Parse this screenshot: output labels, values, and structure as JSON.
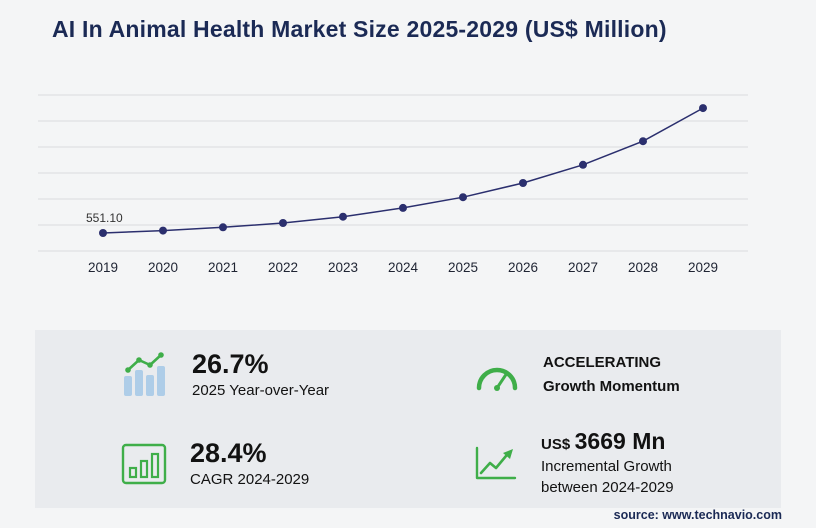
{
  "title": "AI In Animal Health Market Size 2025-2029 (US$ Million)",
  "source_text": "source: www.technavio.com",
  "chart_data": {
    "type": "line",
    "title": "AI In Animal Health Market Size 2025-2029 (US$ Million)",
    "categories": [
      "2019",
      "2020",
      "2021",
      "2022",
      "2023",
      "2024",
      "2025",
      "2026",
      "2027",
      "2028",
      "2029"
    ],
    "values": [
      551.1,
      640,
      760,
      920,
      1150,
      1473,
      1866,
      2390,
      3060,
      3925,
      5142
    ],
    "point_label": {
      "category": "2019",
      "text": "551.10"
    },
    "xlabel": "",
    "ylabel": "US$ Million",
    "ylim": [
      0,
      5500
    ],
    "grid": true,
    "legend": "none",
    "line_color": "#2b2f6e",
    "marker_color": "#2b2f6e"
  },
  "stats": {
    "yoy": {
      "value": "26.7%",
      "label": "2025 Year-over-Year"
    },
    "momentum": {
      "line1": "ACCELERATING",
      "line2": "Growth Momentum"
    },
    "cagr": {
      "value": "28.4%",
      "label": "CAGR 2024-2029"
    },
    "incremental": {
      "currency": "US$",
      "value": "3669 Mn",
      "label1": "Incremental Growth",
      "label2": "between 2024-2029"
    }
  },
  "colors": {
    "accent_green": "#3fae49",
    "bar_blue": "#aecde8",
    "navy_title": "#1b2a55",
    "line_navy": "#2b2f6e",
    "panel_bg": "#e9ebee",
    "page_bg": "#f4f5f6",
    "gridline": "#dadcdf"
  }
}
